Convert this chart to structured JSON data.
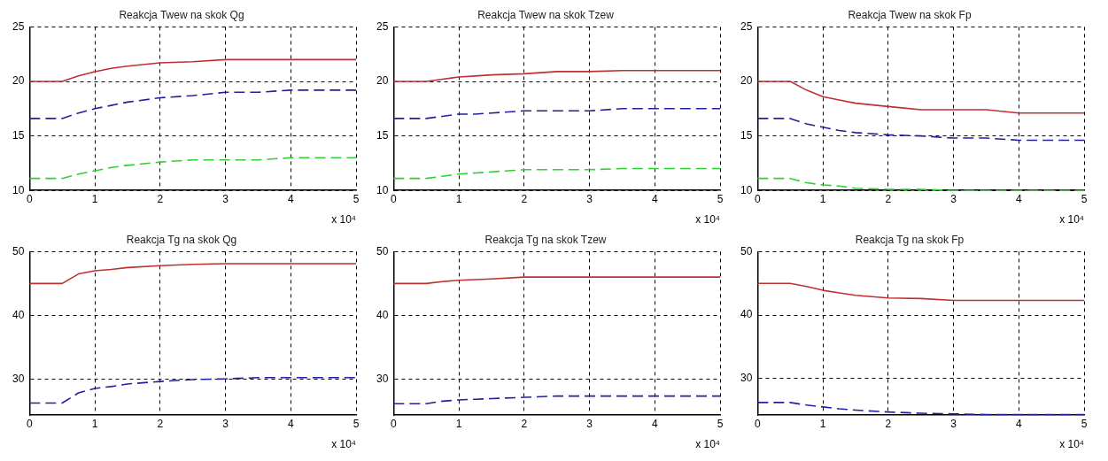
{
  "chart_data": [
    {
      "type": "line",
      "title": "Reakcja Twew na skok Qg",
      "xlabel": "x 10⁴",
      "x": [
        0,
        0.5,
        0.75,
        1,
        1.25,
        1.5,
        2,
        2.5,
        3,
        3.5,
        4,
        5
      ],
      "xlim": [
        0,
        5
      ],
      "xticks": [
        0,
        1,
        2,
        3,
        4,
        5
      ],
      "ylim": [
        10,
        25
      ],
      "yticks": [
        10,
        15,
        20,
        25
      ],
      "grid": true,
      "marker": "none",
      "series": [
        {
          "color": "#c03030",
          "line_style": "solid",
          "values": [
            20,
            20,
            20.5,
            20.9,
            21.2,
            21.4,
            21.7,
            21.8,
            22,
            22,
            22,
            22
          ]
        },
        {
          "color": "#2020a0",
          "line_style": "dashed",
          "values": [
            16.6,
            16.6,
            17.1,
            17.5,
            17.8,
            18.1,
            18.5,
            18.7,
            19,
            19,
            19.2,
            19.2
          ]
        },
        {
          "color": "#30d030",
          "line_style": "dashed",
          "values": [
            11.1,
            11.1,
            11.5,
            11.8,
            12.1,
            12.3,
            12.6,
            12.8,
            12.8,
            12.8,
            13,
            13
          ]
        }
      ]
    },
    {
      "type": "line",
      "title": "Reakcja Twew na skok Tzew",
      "xlabel": "x 10⁴",
      "x": [
        0,
        0.5,
        0.75,
        1,
        1.25,
        1.5,
        2,
        2.5,
        3,
        3.5,
        4,
        5
      ],
      "xlim": [
        0,
        5
      ],
      "xticks": [
        0,
        1,
        2,
        3,
        4,
        5
      ],
      "ylim": [
        10,
        25
      ],
      "yticks": [
        10,
        15,
        20,
        25
      ],
      "grid": true,
      "marker": "none",
      "series": [
        {
          "color": "#c03030",
          "line_style": "solid",
          "values": [
            20,
            20,
            20.2,
            20.4,
            20.5,
            20.6,
            20.7,
            20.9,
            20.9,
            21,
            21,
            21
          ]
        },
        {
          "color": "#2020a0",
          "line_style": "dashed",
          "values": [
            16.6,
            16.6,
            16.8,
            17,
            17,
            17.1,
            17.3,
            17.3,
            17.3,
            17.5,
            17.5,
            17.5
          ]
        },
        {
          "color": "#30d030",
          "line_style": "dashed",
          "values": [
            11.1,
            11.1,
            11.3,
            11.5,
            11.6,
            11.7,
            11.9,
            11.9,
            11.9,
            12,
            12,
            12
          ]
        }
      ]
    },
    {
      "type": "line",
      "title": "Reakcja Twew na skok Fp",
      "xlabel": "x 10⁴",
      "x": [
        0,
        0.5,
        0.75,
        1,
        1.25,
        1.5,
        2,
        2.5,
        3,
        3.5,
        4,
        5
      ],
      "xlim": [
        0,
        5
      ],
      "xticks": [
        0,
        1,
        2,
        3,
        4,
        5
      ],
      "ylim": [
        10,
        25
      ],
      "yticks": [
        10,
        15,
        20,
        25
      ],
      "grid": true,
      "marker": "none",
      "series": [
        {
          "color": "#c03030",
          "line_style": "solid",
          "values": [
            20,
            20,
            19.2,
            18.6,
            18.3,
            18,
            17.7,
            17.4,
            17.4,
            17.4,
            17.1,
            17.1
          ]
        },
        {
          "color": "#2020a0",
          "line_style": "dashed",
          "values": [
            16.6,
            16.6,
            16.1,
            15.8,
            15.5,
            15.3,
            15.1,
            15,
            14.8,
            14.8,
            14.6,
            14.6
          ]
        },
        {
          "color": "#30d030",
          "line_style": "dashed",
          "values": [
            11.1,
            11.1,
            10.7,
            10.5,
            10.4,
            10.2,
            10.1,
            10.1,
            10,
            10,
            10,
            10
          ]
        }
      ]
    },
    {
      "type": "line",
      "title": "Reakcja Tg na skok Qg",
      "xlabel": "x 10⁴",
      "x": [
        0,
        0.5,
        0.75,
        1,
        1.25,
        1.5,
        2,
        2.5,
        3,
        3.5,
        4,
        5
      ],
      "xlim": [
        0,
        5
      ],
      "xticks": [
        0,
        1,
        2,
        3,
        4,
        5
      ],
      "ylim": [
        24.3,
        50
      ],
      "yticks": [
        30,
        40,
        50
      ],
      "grid": true,
      "marker": "none",
      "series": [
        {
          "color": "#c03030",
          "line_style": "solid",
          "values": [
            45,
            45,
            46.5,
            47,
            47.2,
            47.5,
            47.8,
            48,
            48.1,
            48.1,
            48.1,
            48.1
          ]
        },
        {
          "color": "#2020a0",
          "line_style": "dashed",
          "values": [
            26.2,
            26.2,
            27.8,
            28.5,
            28.8,
            29.2,
            29.6,
            29.9,
            30,
            30.2,
            30.2,
            30.2
          ]
        }
      ]
    },
    {
      "type": "line",
      "title": "Reakcja Tg na skok Tzew",
      "xlabel": "x 10⁴",
      "x": [
        0,
        0.5,
        0.75,
        1,
        1.25,
        1.5,
        2,
        2.5,
        3,
        3.5,
        4,
        5
      ],
      "xlim": [
        0,
        5
      ],
      "xticks": [
        0,
        1,
        2,
        3,
        4,
        5
      ],
      "ylim": [
        24.3,
        50
      ],
      "yticks": [
        30,
        40,
        50
      ],
      "grid": true,
      "marker": "none",
      "series": [
        {
          "color": "#c03030",
          "line_style": "solid",
          "values": [
            45,
            45,
            45.3,
            45.5,
            45.6,
            45.7,
            46,
            46,
            46,
            46,
            46,
            46
          ]
        },
        {
          "color": "#2020a0",
          "line_style": "dashed",
          "values": [
            26.1,
            26.1,
            26.5,
            26.7,
            26.8,
            26.9,
            27.1,
            27.3,
            27.3,
            27.3,
            27.3,
            27.3
          ]
        }
      ]
    },
    {
      "type": "line",
      "title": "Reakcja Tg na skok Fp",
      "xlabel": "x 10⁴",
      "x": [
        0,
        0.5,
        0.75,
        1,
        1.25,
        1.5,
        2,
        2.5,
        3,
        3.5,
        4,
        5
      ],
      "xlim": [
        0,
        5
      ],
      "xticks": [
        0,
        1,
        2,
        3,
        4,
        5
      ],
      "ylim": [
        24.2,
        50
      ],
      "yticks": [
        30,
        40,
        50
      ],
      "grid": true,
      "marker": "none",
      "series": [
        {
          "color": "#c03030",
          "line_style": "solid",
          "values": [
            45,
            45,
            44.5,
            43.9,
            43.5,
            43.1,
            42.7,
            42.6,
            42.3,
            42.3,
            42.3,
            42.3
          ]
        },
        {
          "color": "#2020a0",
          "line_style": "dashed",
          "values": [
            26.2,
            26.2,
            25.8,
            25.5,
            25.2,
            25,
            24.7,
            24.5,
            24.4,
            24.3,
            24.3,
            24.3
          ]
        }
      ]
    }
  ]
}
